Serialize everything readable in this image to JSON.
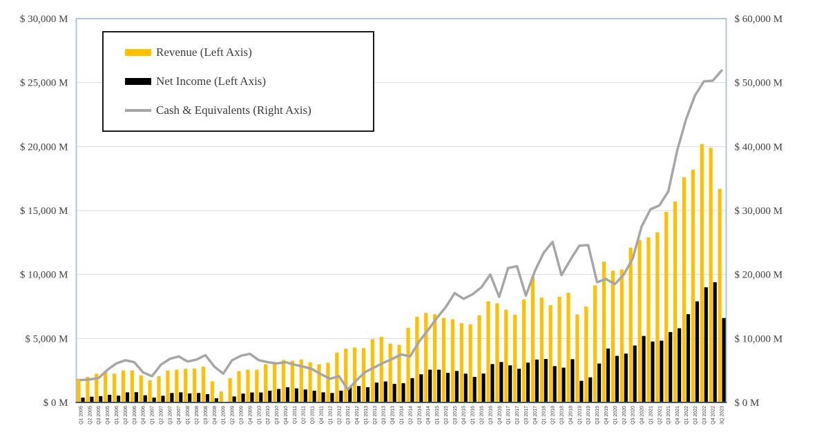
{
  "chart_data": {
    "type": "combo-bar-line",
    "title": "",
    "categories": [
      "Q1 2005",
      "Q2 2005",
      "Q3 2005",
      "Q4 2005",
      "Q1 2006",
      "Q2 2006",
      "Q3 2006",
      "Q4 2006",
      "Q1 2007",
      "Q2 2007",
      "Q3 2007",
      "Q4 2007",
      "Q1 2008",
      "Q2 2008",
      "Q3 2008",
      "Q4 2008",
      "Q1 2009",
      "Q2 2009",
      "Q3 2009",
      "Q4 2009",
      "Q1 2010",
      "Q2 2010",
      "Q3 2010",
      "Q4 2010",
      "Q1 2011",
      "Q2 2011",
      "Q3 2011",
      "Q4 2011",
      "Q1 2012",
      "Q2 2012",
      "Q3 2012",
      "Q4 2012",
      "Q1 2013",
      "Q2 2013",
      "Q3 2013",
      "Q4 2013",
      "Q1 2014",
      "Q2 2014",
      "Q3 2014",
      "Q4 2014",
      "Q1 2015",
      "Q2 2015",
      "Q3 2015",
      "Q4 2015",
      "Q1 2016",
      "Q2 2016",
      "Q3 2016",
      "Q4 2016",
      "Q1 2017",
      "Q2 2017",
      "Q3 2017",
      "Q4 2017",
      "Q1 2018",
      "Q2 2018",
      "Q3 2018",
      "Q4 2018",
      "Q1 2019",
      "Q2 2019",
      "Q3 2019",
      "Q4 2019",
      "Q1 2020",
      "Q2 2020",
      "Q3 2020",
      "Q4 2020",
      "Q1 2021",
      "Q2 2021",
      "Q3 2021",
      "Q4 2021",
      "Q1 2022",
      "Q2 2022",
      "Q3 2022",
      "Q4 2022",
      "3Q 2023"
    ],
    "series": [
      {
        "name": "Revenue (Left Axis)",
        "type": "bar",
        "axis": "left",
        "color": "#FFC000",
        "values": [
          1850,
          2000,
          2250,
          2400,
          2250,
          2500,
          2500,
          2130,
          1730,
          2050,
          2490,
          2560,
          2630,
          2650,
          2800,
          1650,
          850,
          1910,
          2450,
          2560,
          2560,
          2990,
          3140,
          3320,
          3260,
          3350,
          3140,
          2990,
          3100,
          3900,
          4200,
          4300,
          4250,
          4940,
          5120,
          4600,
          4500,
          5830,
          6700,
          7000,
          6900,
          6600,
          6500,
          6200,
          6100,
          6800,
          7900,
          7750,
          7250,
          6850,
          8050,
          9800,
          8200,
          7600,
          8260,
          8570,
          6880,
          7490,
          9160,
          11000,
          10300,
          10400,
          12100,
          12700,
          12900,
          13300,
          14900,
          15700,
          17600,
          18200,
          20200,
          19900,
          16700
        ]
      },
      {
        "name": "Net Income (Left Axis)",
        "type": "bar",
        "axis": "left",
        "color": "#000000",
        "values": [
          380,
          450,
          490,
          600,
          530,
          790,
          800,
          560,
          380,
          520,
          740,
          790,
          700,
          740,
          650,
          320,
          50,
          470,
          690,
          780,
          780,
          920,
          1050,
          1190,
          1100,
          1010,
          920,
          790,
          740,
          920,
          1190,
          1280,
          1190,
          1550,
          1640,
          1450,
          1500,
          1900,
          2200,
          2560,
          2560,
          2310,
          2460,
          2250,
          2000,
          2260,
          3000,
          3160,
          2900,
          2630,
          3110,
          3350,
          3400,
          2840,
          2720,
          3380,
          1690,
          1960,
          3040,
          4210,
          3640,
          3820,
          4450,
          5200,
          4760,
          4830,
          5500,
          5800,
          6900,
          7900,
          9000,
          9400,
          6600
        ]
      },
      {
        "name": "Cash & Equivalents (Right Axis)",
        "type": "line",
        "axis": "right",
        "color": "#A6A6A6",
        "values": [
          3500,
          3600,
          3800,
          5100,
          6100,
          6600,
          6300,
          4700,
          4100,
          5900,
          6800,
          7200,
          6400,
          6700,
          7400,
          5600,
          4500,
          6600,
          7300,
          7600,
          6600,
          6300,
          6100,
          6300,
          5900,
          5600,
          5200,
          4400,
          3700,
          4100,
          2000,
          3500,
          4800,
          5500,
          6200,
          6800,
          7500,
          7200,
          9500,
          11300,
          13200,
          14900,
          17100,
          16200,
          16900,
          18000,
          20000,
          16500,
          21000,
          21300,
          16700,
          20500,
          23400,
          25100,
          19900,
          22300,
          24500,
          24600,
          18800,
          19300,
          18500,
          20000,
          22500,
          27500,
          30200,
          30800,
          33000,
          39400,
          44300,
          48000,
          50200,
          50300,
          51900
        ]
      }
    ],
    "left_axis": {
      "min": 0,
      "max": 30000,
      "step": 5000,
      "tick_labels": [
        "$ 30,000 M",
        "$ 25,000 M",
        "$ 20,000 M",
        "$ 15,000 M",
        "$ 10,000 M",
        "$ 5,000 M",
        "$ 0 M"
      ]
    },
    "right_axis": {
      "min": 0,
      "max": 60000,
      "step": 10000,
      "tick_labels": [
        "$ 60,000 M",
        "$ 50,000 M",
        "$ 40,000 M",
        "$ 30,000 M",
        "$ 20,000 M",
        "$ 10,000 M",
        "$ 0 M"
      ]
    },
    "grid": true,
    "legend_position": "top-left"
  },
  "colors": {
    "background": "#ffffff",
    "gridline": "#D9D9D9",
    "plot_border": "#AEC6DD",
    "baseline": "#44546A",
    "tick_text": "#404040",
    "legend_border": "#1a1a1a"
  }
}
